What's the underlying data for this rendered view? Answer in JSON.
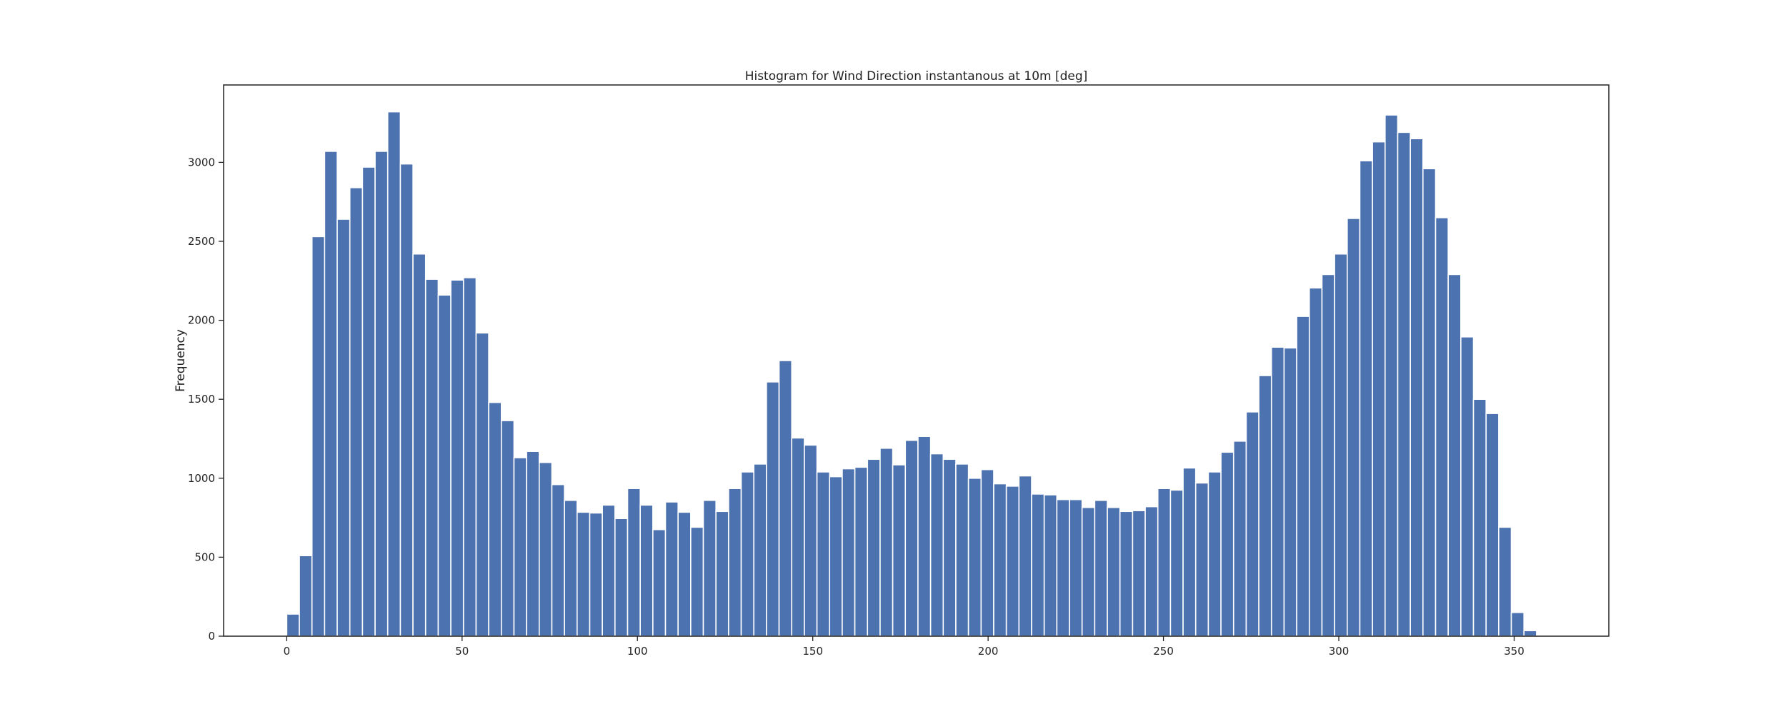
{
  "chart_data": {
    "type": "bar",
    "title": "Histogram for Wind Direction instantanous at 10m [deg]",
    "xlabel": "",
    "ylabel": "Frequency",
    "xlim": [
      -18,
      377
    ],
    "ylim": [
      0,
      3490
    ],
    "xticks": [
      0,
      50,
      100,
      150,
      200,
      250,
      300,
      350
    ],
    "yticks": [
      0,
      500,
      1000,
      1500,
      2000,
      2500,
      3000
    ],
    "bin_start": 0,
    "bin_width": 3.6,
    "values": [
      140,
      510,
      2530,
      3070,
      2640,
      2840,
      2970,
      3070,
      3320,
      2990,
      2420,
      2260,
      2160,
      2255,
      2270,
      1920,
      1480,
      1365,
      1130,
      1170,
      1100,
      960,
      860,
      785,
      780,
      830,
      745,
      935,
      830,
      675,
      850,
      785,
      690,
      860,
      790,
      935,
      1040,
      1090,
      1610,
      1745,
      1255,
      1210,
      1040,
      1010,
      1060,
      1070,
      1120,
      1190,
      1085,
      1240,
      1265,
      1155,
      1120,
      1090,
      1000,
      1055,
      965,
      950,
      1015,
      900,
      895,
      865,
      865,
      815,
      860,
      815,
      790,
      795,
      820,
      935,
      925,
      1065,
      970,
      1040,
      1165,
      1235,
      1420,
      1650,
      1830,
      1825,
      2025,
      2205,
      2290,
      2420,
      2645,
      3010,
      3130,
      3300,
      3190,
      3150,
      2960,
      2650,
      2290,
      1895,
      1500,
      1410,
      690,
      150,
      35,
      0
    ],
    "bar_color": "#4c72b0",
    "grid": false,
    "legend": "none"
  }
}
